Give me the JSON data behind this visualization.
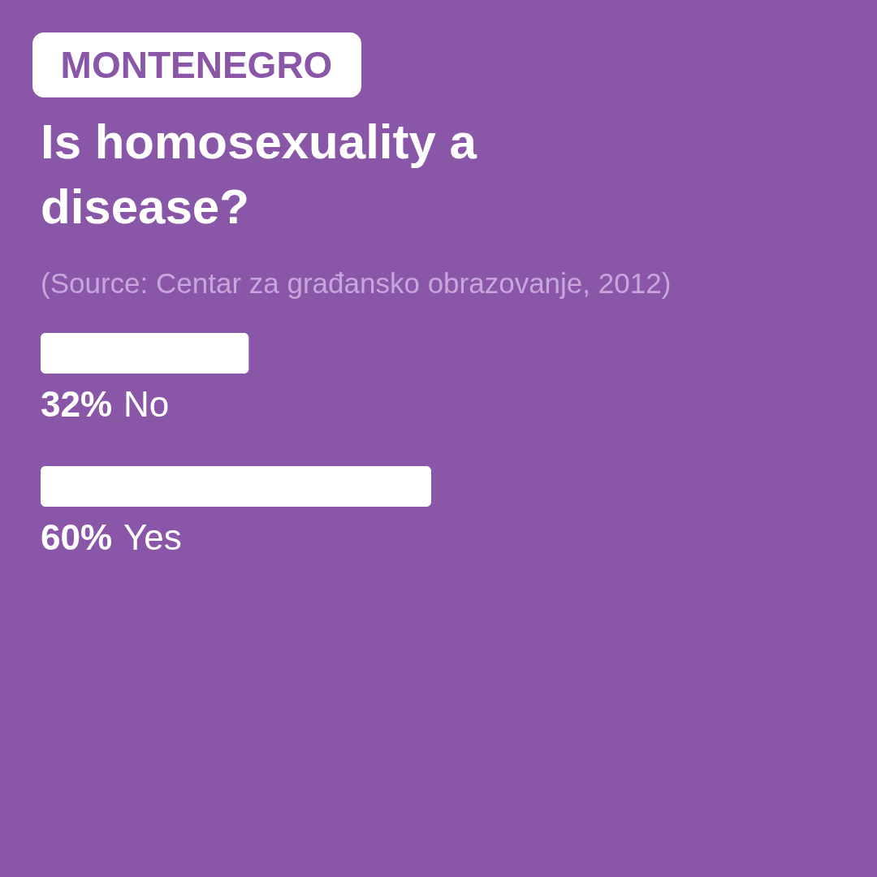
{
  "chart_data": {
    "type": "bar",
    "orientation": "horizontal",
    "subtitle": "MONTENEGRO",
    "title": "Is homosexuality a disease?",
    "annotations": [
      "(Source: Centar za građansko obrazovanje, 2012)"
    ],
    "categories": [
      "No",
      "Yes"
    ],
    "values": [
      32,
      60
    ],
    "color": "#ffffff",
    "value_labels": [
      "32%",
      "60%"
    ]
  }
}
